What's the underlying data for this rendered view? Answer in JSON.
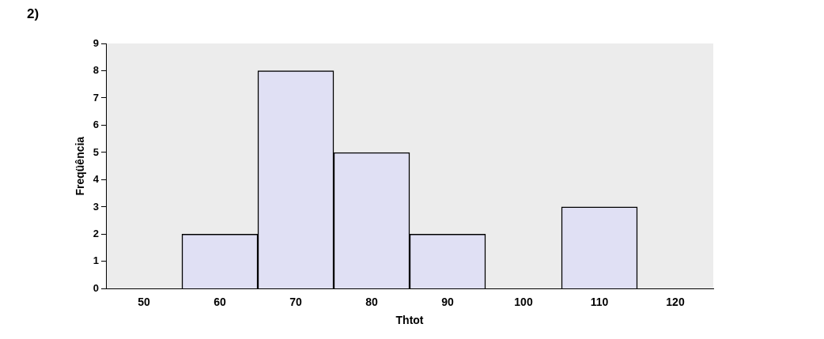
{
  "chart_data": {
    "type": "bar",
    "title": "2)",
    "xlabel": "Thtot",
    "ylabel": "Freqüência",
    "categories": [
      "50",
      "60",
      "70",
      "80",
      "90",
      "100",
      "110",
      "120"
    ],
    "values": [
      0,
      2,
      8,
      5,
      2,
      0,
      3,
      0
    ],
    "color": "#e0e0f4",
    "ylim": [
      0,
      9
    ],
    "yticks": [
      0,
      1,
      2,
      3,
      4,
      5,
      6,
      7,
      8,
      9
    ],
    "grid": false,
    "legend": false
  }
}
